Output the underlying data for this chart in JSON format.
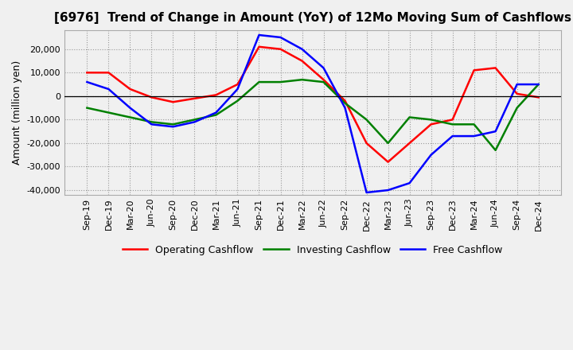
{
  "title": "[6976]  Trend of Change in Amount (YoY) of 12Mo Moving Sum of Cashflows",
  "ylabel": "Amount (million yen)",
  "x_labels": [
    "Sep-19",
    "Dec-19",
    "Mar-20",
    "Jun-20",
    "Sep-20",
    "Dec-20",
    "Mar-21",
    "Jun-21",
    "Sep-21",
    "Dec-21",
    "Mar-22",
    "Jun-22",
    "Sep-22",
    "Dec-22",
    "Mar-23",
    "Jun-23",
    "Sep-23",
    "Dec-23",
    "Mar-24",
    "Jun-24",
    "Sep-24",
    "Dec-24"
  ],
  "operating": [
    10000,
    10000,
    3000,
    -500,
    -2500,
    -1000,
    500,
    5000,
    21000,
    20000,
    15000,
    7000,
    -2000,
    -20000,
    -28000,
    -20000,
    -12000,
    -10000,
    11000,
    12000,
    1000,
    -500
  ],
  "investing": [
    -5000,
    -7000,
    -9000,
    -11000,
    -12000,
    -10000,
    -8000,
    -2000,
    6000,
    6000,
    7000,
    6000,
    -3000,
    -10000,
    -20000,
    -9000,
    -10000,
    -12000,
    -12000,
    -23000,
    -5000,
    5000
  ],
  "free": [
    6000,
    3000,
    -5000,
    -12000,
    -13000,
    -11000,
    -7000,
    3000,
    26000,
    25000,
    20000,
    12000,
    -5000,
    -41000,
    -40000,
    -37000,
    -25000,
    -17000,
    -17000,
    -15000,
    5000,
    5000
  ],
  "ylim": [
    -42000,
    28000
  ],
  "yticks": [
    -40000,
    -30000,
    -20000,
    -10000,
    0,
    10000,
    20000
  ],
  "legend_labels": [
    "Operating Cashflow",
    "Investing Cashflow",
    "Free Cashflow"
  ],
  "line_colors": [
    "#ff0000",
    "#008000",
    "#0000ff"
  ],
  "background_color": "#f0f0f0",
  "plot_bg_color": "#f0f0f0",
  "grid_color": "#999999",
  "title_fontsize": 11,
  "axis_fontsize": 9,
  "tick_fontsize": 8
}
